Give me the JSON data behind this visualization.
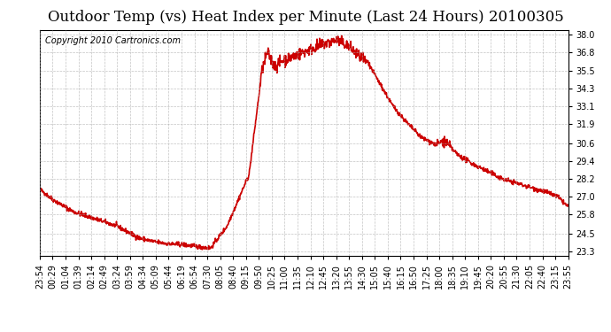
{
  "title": "Outdoor Temp (vs) Heat Index per Minute (Last 24 Hours) 20100305",
  "copyright": "Copyright 2010 Cartronics.com",
  "line_color": "#cc0000",
  "bg_color": "#ffffff",
  "plot_bg_color": "#ffffff",
  "grid_color": "#aaaaaa",
  "yticks": [
    23.3,
    24.5,
    25.8,
    27.0,
    28.2,
    29.4,
    30.6,
    31.9,
    33.1,
    34.3,
    35.5,
    36.8,
    38.0
  ],
  "xtick_labels": [
    "23:54",
    "00:29",
    "01:04",
    "01:39",
    "02:14",
    "02:49",
    "03:24",
    "03:59",
    "04:34",
    "05:09",
    "05:44",
    "06:19",
    "06:54",
    "07:30",
    "08:05",
    "08:40",
    "09:15",
    "09:50",
    "10:25",
    "11:00",
    "11:35",
    "12:10",
    "12:45",
    "13:20",
    "13:55",
    "14:30",
    "15:05",
    "15:40",
    "16:15",
    "16:50",
    "17:25",
    "18:00",
    "18:35",
    "19:10",
    "19:45",
    "20:20",
    "20:55",
    "21:30",
    "22:05",
    "22:40",
    "23:15",
    "23:55"
  ],
  "ylim": [
    23.0,
    38.3
  ],
  "title_fontsize": 12,
  "copyright_fontsize": 7,
  "tick_fontsize": 7,
  "line_width": 1.2
}
